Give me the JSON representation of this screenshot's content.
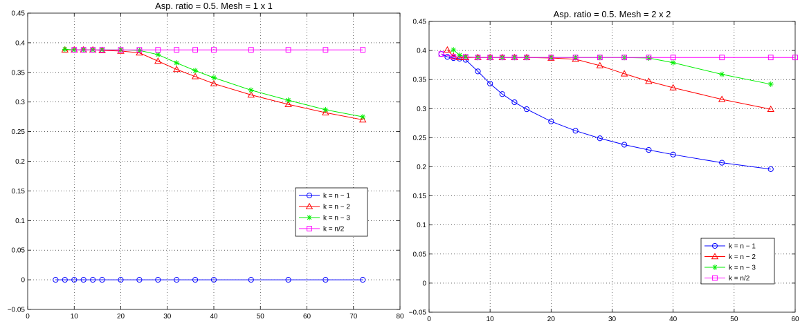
{
  "chart_data": [
    {
      "type": "line",
      "title": "Asp. ratio = 0.5.  Mesh = 1 x 1",
      "xlabel": "",
      "ylabel": "",
      "xlim": [
        0,
        80
      ],
      "ylim": [
        -0.05,
        0.45
      ],
      "xticks": [
        "0",
        "10",
        "20",
        "30",
        "40",
        "50",
        "60",
        "70",
        "80"
      ],
      "yticks": [
        "−0.05",
        "0",
        "0.05",
        "0.1",
        "0.15",
        "0.2",
        "0.25",
        "0.3",
        "0.35",
        "0.4",
        "0.45"
      ],
      "grid": true,
      "legend_position": "bottom-right",
      "series": [
        {
          "name": "k = n − 1",
          "color": "#0000ff",
          "marker": "circle",
          "x": [
            6,
            8,
            10,
            12,
            14,
            16,
            20,
            24,
            28,
            32,
            36,
            40,
            48,
            56,
            64,
            72
          ],
          "y": [
            0,
            0,
            0,
            0,
            0,
            0,
            0,
            0,
            0,
            0,
            0,
            0,
            0,
            0,
            0,
            0
          ]
        },
        {
          "name": "k = n − 2",
          "color": "#ff0000",
          "marker": "triangle",
          "x": [
            8,
            10,
            12,
            14,
            16,
            20,
            24,
            28,
            32,
            36,
            40,
            48,
            56,
            64,
            72
          ],
          "y": [
            0.388,
            0.388,
            0.388,
            0.388,
            0.387,
            0.386,
            0.383,
            0.369,
            0.355,
            0.343,
            0.331,
            0.312,
            0.296,
            0.282,
            0.27
          ]
        },
        {
          "name": "k = n − 3",
          "color": "#00ee00",
          "marker": "star",
          "x": [
            8,
            10,
            12,
            14,
            16,
            20,
            24,
            28,
            32,
            36,
            40,
            48,
            56,
            64,
            72
          ],
          "y": [
            0.389,
            0.388,
            0.388,
            0.388,
            0.388,
            0.388,
            0.387,
            0.38,
            0.366,
            0.353,
            0.341,
            0.32,
            0.303,
            0.287,
            0.275
          ]
        },
        {
          "name": "k = n/2",
          "color": "#ff00ff",
          "marker": "square",
          "x": [
            10,
            12,
            14,
            16,
            20,
            24,
            28,
            32,
            36,
            40,
            48,
            56,
            64,
            72
          ],
          "y": [
            0.388,
            0.388,
            0.388,
            0.388,
            0.388,
            0.388,
            0.388,
            0.388,
            0.388,
            0.388,
            0.388,
            0.388,
            0.388,
            0.388
          ]
        }
      ]
    },
    {
      "type": "line",
      "title": "Asp. ratio = 0.5.  Mesh = 2 x 2",
      "xlabel": "",
      "ylabel": "",
      "xlim": [
        0,
        60
      ],
      "ylim": [
        -0.05,
        0.45
      ],
      "xticks": [
        "0",
        "10",
        "20",
        "30",
        "40",
        "50",
        "60"
      ],
      "yticks": [
        "−0.05",
        "0",
        "0.05",
        "0.1",
        "0.15",
        "0.2",
        "0.25",
        "0.3",
        "0.35",
        "0.4",
        "0.45"
      ],
      "grid": true,
      "legend_position": "bottom-right",
      "series": [
        {
          "name": "k = n − 1",
          "color": "#0000ff",
          "marker": "circle",
          "x": [
            2,
            3,
            4,
            5,
            6,
            8,
            10,
            12,
            14,
            16,
            20,
            24,
            28,
            32,
            36,
            40,
            48,
            56
          ],
          "y": [
            0.394,
            0.389,
            0.387,
            0.386,
            0.384,
            0.364,
            0.343,
            0.325,
            0.311,
            0.299,
            0.278,
            0.262,
            0.249,
            0.238,
            0.229,
            0.221,
            0.207,
            0.196
          ]
        },
        {
          "name": "k = n − 2",
          "color": "#ff0000",
          "marker": "triangle",
          "x": [
            3,
            4,
            5,
            6,
            8,
            10,
            12,
            14,
            16,
            20,
            24,
            28,
            32,
            36,
            40,
            48,
            56
          ],
          "y": [
            0.401,
            0.39,
            0.388,
            0.388,
            0.388,
            0.388,
            0.388,
            0.388,
            0.388,
            0.387,
            0.385,
            0.374,
            0.36,
            0.347,
            0.336,
            0.316,
            0.299
          ]
        },
        {
          "name": "k = n − 3",
          "color": "#00ee00",
          "marker": "star",
          "x": [
            4,
            5,
            6,
            8,
            10,
            12,
            14,
            16,
            20,
            24,
            28,
            32,
            36,
            40,
            48,
            56
          ],
          "y": [
            0.401,
            0.392,
            0.389,
            0.388,
            0.388,
            0.388,
            0.388,
            0.388,
            0.388,
            0.388,
            0.388,
            0.388,
            0.387,
            0.379,
            0.359,
            0.342
          ]
        },
        {
          "name": "k = n/2",
          "color": "#ff00ff",
          "marker": "square",
          "x": [
            2,
            4,
            6,
            8,
            10,
            12,
            14,
            16,
            20,
            24,
            28,
            32,
            36,
            40,
            48,
            56,
            60
          ],
          "y": [
            0.394,
            0.389,
            0.389,
            0.388,
            0.388,
            0.388,
            0.388,
            0.388,
            0.388,
            0.388,
            0.388,
            0.388,
            0.388,
            0.388,
            0.388,
            0.388,
            0.388
          ]
        }
      ]
    }
  ]
}
